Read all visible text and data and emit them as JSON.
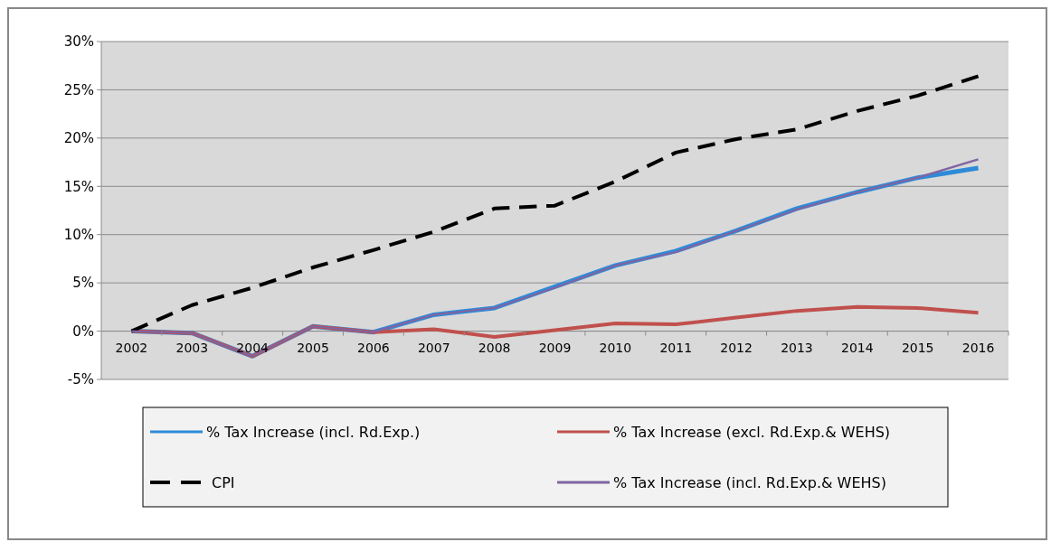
{
  "chart_data": {
    "type": "line",
    "categories": [
      "2002",
      "2003",
      "2004",
      "2005",
      "2006",
      "2007",
      "2008",
      "2009",
      "2010",
      "2011",
      "2012",
      "2013",
      "2014",
      "2015",
      "2016"
    ],
    "ylim": [
      -0.05,
      0.3
    ],
    "yticks": [
      {
        "value": -0.05,
        "label": "-5%"
      },
      {
        "value": 0,
        "label": "0%"
      },
      {
        "value": 0.05,
        "label": "5%"
      },
      {
        "value": 0.1,
        "label": "10%"
      },
      {
        "value": 0.15,
        "label": "15%"
      },
      {
        "value": 0.2,
        "label": "20%"
      },
      {
        "value": 0.25,
        "label": "25%"
      },
      {
        "value": 0.3,
        "label": "30%"
      }
    ],
    "grid": "y",
    "legend": "bottom",
    "marker": "none",
    "series": [
      {
        "name": "% Tax Increase (incl. Rd.Exp.)",
        "color": "#2e8bd8",
        "line_style": "solid",
        "values": [
          0,
          -0.002,
          -0.026,
          0.005,
          -0.001,
          0.017,
          0.024,
          0.046,
          0.068,
          0.083,
          0.104,
          0.127,
          0.144,
          0.159,
          0.169
        ]
      },
      {
        "name": "% Tax Increase (excl. Rd.Exp.& WEHS)",
        "color": "#c0504d",
        "line_style": "solid",
        "values": [
          0,
          -0.002,
          -0.026,
          0.005,
          -0.001,
          0.002,
          -0.006,
          0.001,
          0.008,
          0.007,
          0.014,
          0.021,
          0.025,
          0.024,
          0.019
        ]
      },
      {
        "name": "CPI",
        "color": "#000000",
        "line_style": "dashed",
        "values": [
          0,
          0.027,
          0.045,
          0.066,
          0.084,
          0.103,
          0.127,
          0.13,
          0.155,
          0.185,
          0.199,
          0.209,
          0.228,
          0.244,
          0.264
        ]
      },
      {
        "name": "% Tax Increase (incl. Rd.Exp.& WEHS)",
        "color": "#8064a2",
        "line_style": "solid",
        "values": [
          0,
          -0.002,
          -0.026,
          0.005,
          -0.001,
          0.017,
          0.024,
          0.045,
          0.068,
          0.082,
          0.104,
          0.126,
          0.144,
          0.159,
          0.178
        ]
      }
    ]
  }
}
